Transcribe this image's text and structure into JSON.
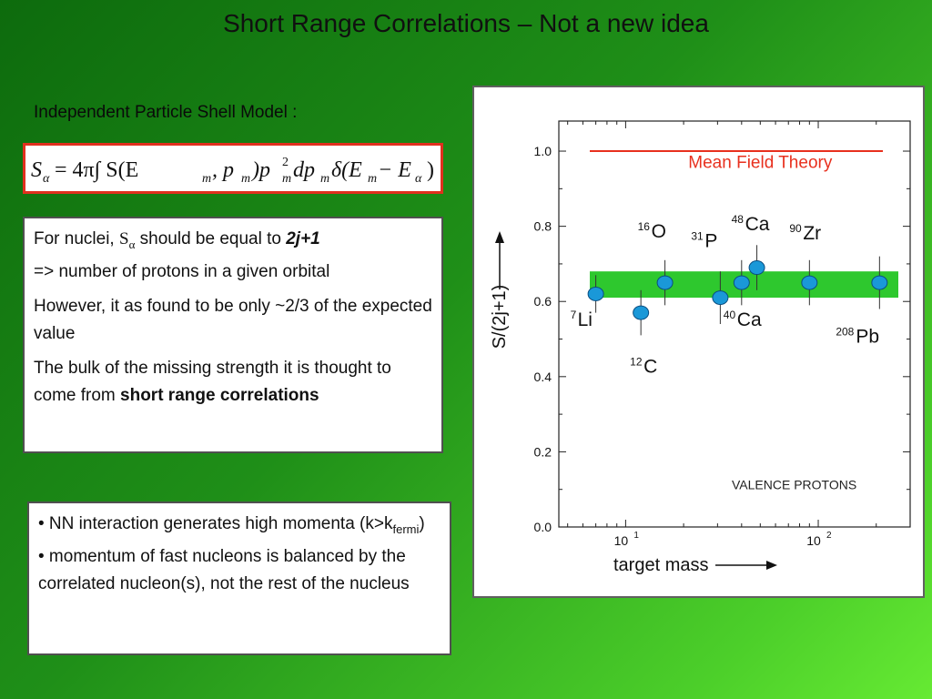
{
  "slide": {
    "title": "Short Range Correlations – Not a new idea",
    "ipsm_label": "Independent Particle Shell Model :"
  },
  "formula": {
    "S": "S",
    "alpha": "α",
    "rhs": "= 4π∫ S(E",
    "m": "m",
    "comma_p": ", p",
    "paren_p": ")p",
    "two": "2",
    "dp": "dp",
    "delta": "δ(E",
    "minus_e": " − E",
    "close": ")"
  },
  "textbox": {
    "p1_a": "For nuclei, ",
    "p1_S": "S",
    "p1_alpha": "α",
    "p1_b": " should be equal to ",
    "p1_bold": "2j+1",
    "p1_c": "=> number of protons in a given orbital",
    "p2": "However, it as found to be only ~2/3 of the expected value",
    "p3_a": "The bulk of the missing strength it is thought to come from ",
    "p3_bold": "short range correlations"
  },
  "bullets": {
    "b1_a": "• NN interaction generates high momenta (k>k",
    "b1_sub": "fermi",
    "b1_b": ")",
    "b2": "• momentum of fast nucleons is balanced by the correlated nucleon(s), not the rest of the nucleus"
  },
  "chart_data": {
    "type": "scatter",
    "ylabel": "S/(2j+1)",
    "xlabel": "target mass",
    "xscale": "log",
    "xlim": [
      4.5,
      300
    ],
    "ylim": [
      0.0,
      1.08
    ],
    "yticks": [
      "0.0",
      "0.2",
      "0.4",
      "0.6",
      "0.8",
      "1.0"
    ],
    "xtick_base": "10",
    "xtick_exps": [
      "1",
      "2"
    ],
    "mean_field": {
      "label": "Mean Field Theory",
      "y": 1.0,
      "color": "#e8301e"
    },
    "band": {
      "ymin": 0.61,
      "ymax": 0.68,
      "color": "#2ec82e"
    },
    "annotation": "VALENCE PROTONS",
    "points": [
      {
        "mass": 7,
        "y": 0.62,
        "err": 0.05,
        "nucleus_A": "7",
        "nucleus_sym": "Li"
      },
      {
        "mass": 12,
        "y": 0.57,
        "err": 0.06,
        "nucleus_A": "12",
        "nucleus_sym": "C"
      },
      {
        "mass": 16,
        "y": 0.65,
        "err": 0.06,
        "nucleus_A": "16",
        "nucleus_sym": "O"
      },
      {
        "mass": 31,
        "y": 0.61,
        "err": 0.07,
        "nucleus_A": "31",
        "nucleus_sym": "P"
      },
      {
        "mass": 40,
        "y": 0.65,
        "err": 0.06,
        "nucleus_A": "40",
        "nucleus_sym": "Ca"
      },
      {
        "mass": 48,
        "y": 0.69,
        "err": 0.06,
        "nucleus_A": "48",
        "nucleus_sym": "Ca"
      },
      {
        "mass": 90,
        "y": 0.65,
        "err": 0.06,
        "nucleus_A": "90",
        "nucleus_sym": "Zr"
      },
      {
        "mass": 208,
        "y": 0.65,
        "err": 0.07,
        "nucleus_A": "208",
        "nucleus_sym": "Pb"
      }
    ],
    "point_color": "#1a98d8"
  }
}
